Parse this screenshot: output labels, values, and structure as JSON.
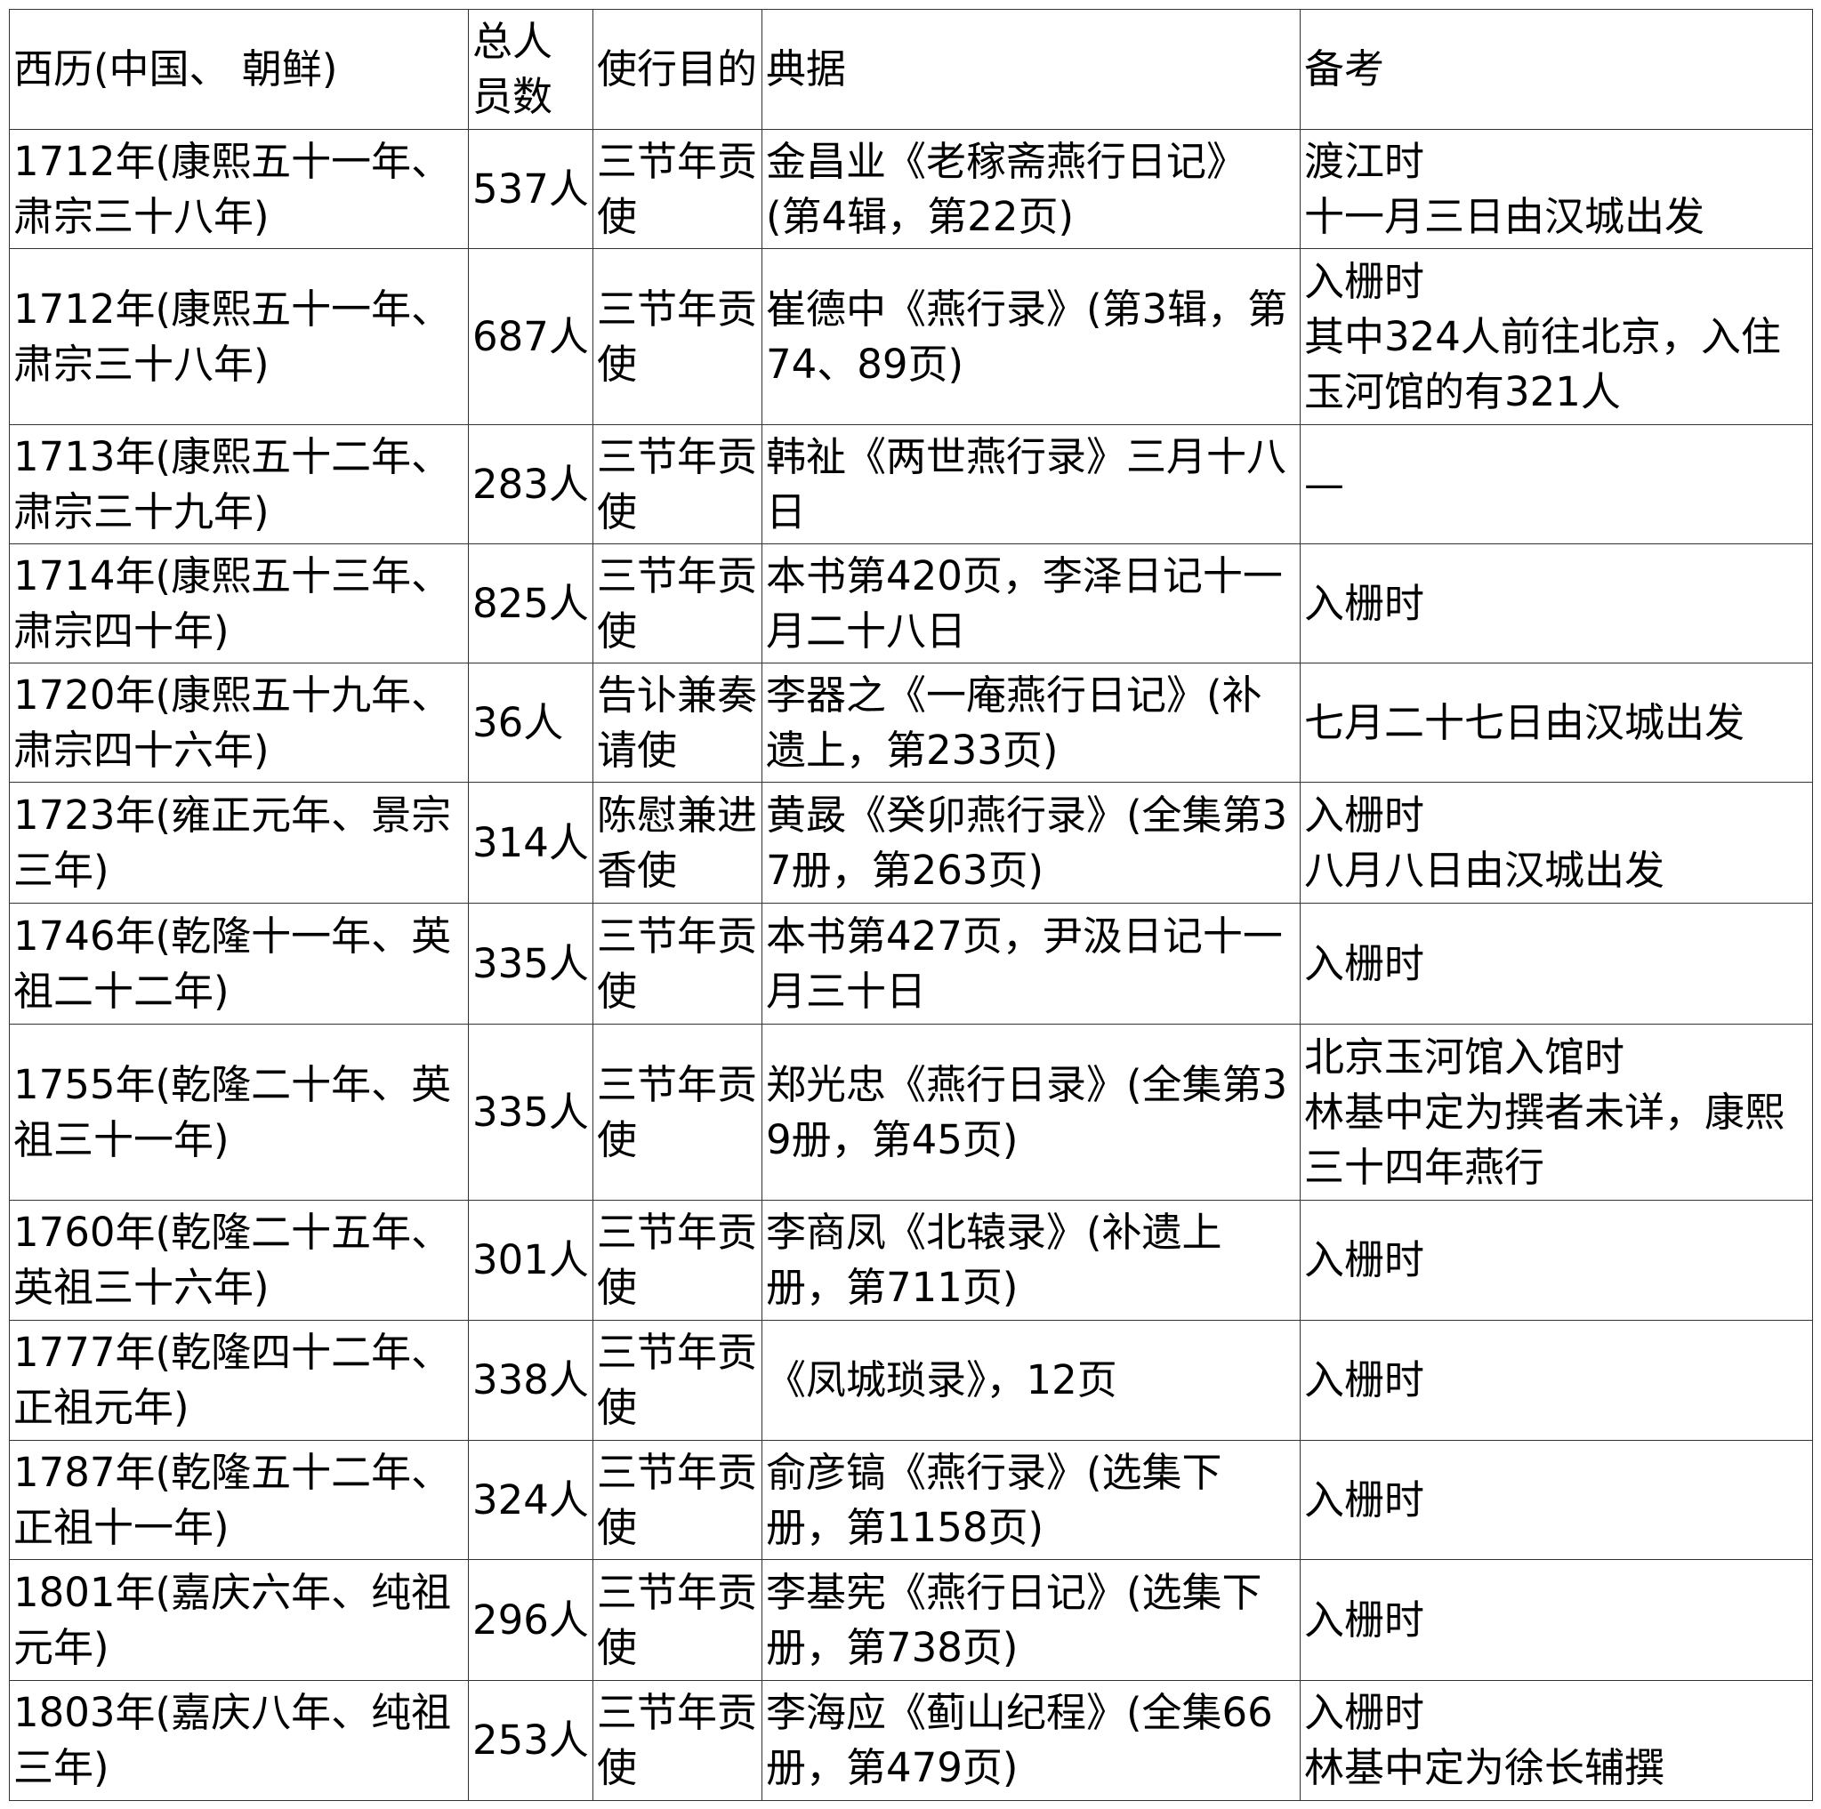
{
  "table": {
    "headers": [
      "西历(中国、 朝鲜)",
      "总人员数",
      "使行目的",
      "典据",
      "备考"
    ],
    "rows": [
      [
        "1712年(康熙五十一年、肃宗三十八年)",
        "537人",
        "三节年贡使",
        "金昌业《老稼斋燕行日记》(第4辑，第22页)",
        "渡江时\n十一月三日由汉城出发"
      ],
      [
        "1712年(康熙五十一年、肃宗三十八年)",
        "687人",
        "三节年贡使",
        "崔德中《燕行录》(第3辑，第74、89页)",
        "入栅时\n其中324人前往北京，入住玉河馆的有321人"
      ],
      [
        "1713年(康熙五十二年、肃宗三十九年)",
        "283人",
        "三节年贡使",
        "韩祉《两世燕行录》三月十八日",
        "—"
      ],
      [
        "1714年(康熙五十三年、肃宗四十年)",
        "825人",
        "三节年贡使",
        "本书第420页，李泽日记十一月二十八日",
        "入栅时"
      ],
      [
        "1720年(康熙五十九年、肃宗四十六年)",
        "36人",
        "告讣兼奏请使",
        "李器之《一庵燕行日记》(补遗上，第233页)",
        "七月二十七日由汉城出发"
      ],
      [
        "1723年(雍正元年、景宗三年)",
        "314人",
        "陈慰兼进香使",
        "黄晸《癸卯燕行录》(全集第37册，第263页)",
        "入栅时\n八月八日由汉城出发"
      ],
      [
        "1746年(乾隆十一年、英祖二十二年)",
        "335人",
        "三节年贡使",
        "  本书第427页，尹汲日记十一月三十日",
        "入栅时"
      ],
      [
        "1755年(乾隆二十年、英祖三十一年)",
        "335人",
        "三节年贡使",
        "郑光忠《燕行日录》(全集第39册，第45页)",
        "北京玉河馆入馆时\n林基中定为撰者未详，康熙三十四年燕行"
      ],
      [
        "1760年(乾隆二十五年、英祖三十六年)",
        "301人",
        "三节年贡使",
        "李商凤《北辕录》(补遗上册，第711页)",
        "入栅时"
      ],
      [
        "1777年(乾隆四十二年、正祖元年)",
        "338人",
        "三节年贡使",
        " 《凤城琐录》，12页",
        "入栅时"
      ],
      [
        "1787年(乾隆五十二年、正祖十一年)",
        "324人",
        "三节年贡使",
        "俞彦镐《燕行录》(选集下册，第1158页)",
        "入栅时"
      ],
      [
        "1801年(嘉庆六年、纯祖元年)",
        "296人",
        "三节年贡使",
        "李基宪《燕行日记》(选集下册，第738页)",
        "入栅时"
      ],
      [
        "1803年(嘉庆八年、纯祖三年)",
        "253人",
        "三节年贡使",
        "李海应《蓟山纪程》(全集66册，第479页)",
        "入栅时\n林基中定为徐长辅撰"
      ]
    ]
  }
}
